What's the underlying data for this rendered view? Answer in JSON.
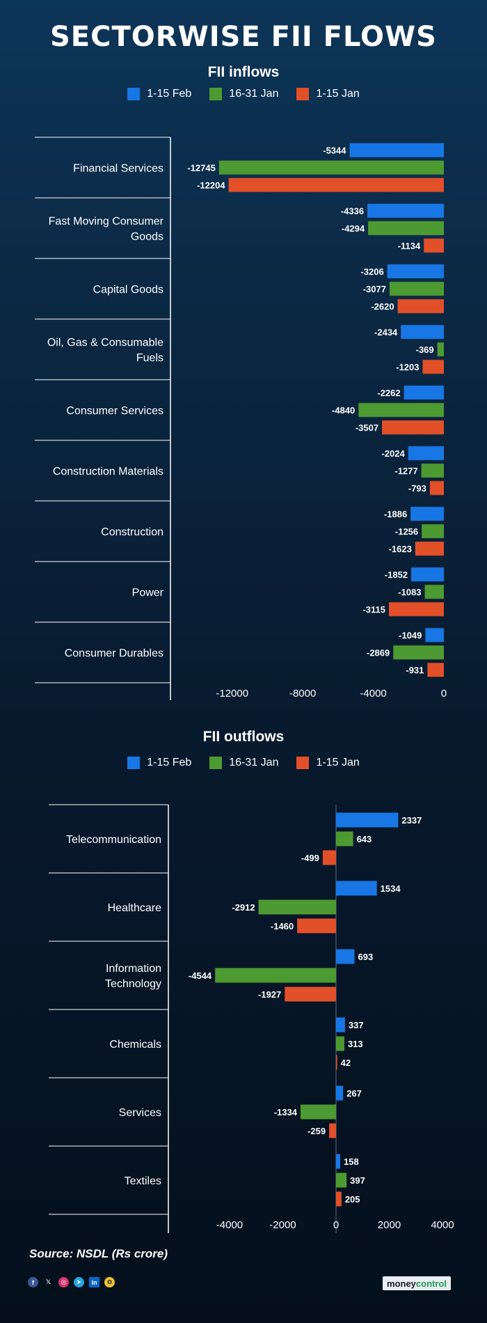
{
  "title": "SECTORWISE FII FLOWS",
  "source": "Source: NSDL (Rs crore)",
  "brand": {
    "part1": "money",
    "part2": "control"
  },
  "social_icons": [
    "facebook-icon",
    "x-icon",
    "instagram-icon",
    "telegram-icon",
    "linkedin-icon",
    "koo-icon"
  ],
  "colors": {
    "feb": "#1877e5",
    "jan_late": "#4e9a32",
    "jan_early": "#e2502a"
  },
  "chart_data": [
    {
      "type": "bar",
      "orientation": "horizontal",
      "title": "FII inflows",
      "categories": [
        "Financial Services",
        "Fast Moving Consumer Goods",
        "Capital Goods",
        "Oil, Gas & Consumable Fuels",
        "Consumer Services",
        "Construction Materials",
        "Construction",
        "Power",
        "Consumer Durables"
      ],
      "series": [
        {
          "name": "1-15 Feb",
          "values": [
            -5344,
            -4336,
            -3206,
            -2434,
            -2262,
            -2024,
            -1886,
            -1852,
            -1049
          ]
        },
        {
          "name": "16-31 Jan",
          "values": [
            -12745,
            -4294,
            -3077,
            -369,
            -4840,
            -1277,
            -1256,
            -1083,
            -2869
          ]
        },
        {
          "name": "1-15 Jan",
          "values": [
            -12204,
            -1134,
            -2620,
            -1203,
            -3507,
            -793,
            -1623,
            -3115,
            -931
          ]
        }
      ],
      "xticks": [
        "-12000",
        "-8000",
        "-4000",
        "0"
      ],
      "tick_values": [
        -12000,
        -8000,
        -4000,
        0
      ],
      "xlim": [
        -15500,
        0
      ]
    },
    {
      "type": "bar",
      "orientation": "horizontal",
      "title": "FII outflows",
      "categories": [
        "Telecommunication",
        "Healthcare",
        "Information Technology",
        "Chemicals",
        "Services",
        "Textiles"
      ],
      "series": [
        {
          "name": "1-15 Feb",
          "values": [
            2337,
            1534,
            693,
            337,
            267,
            158
          ]
        },
        {
          "name": "16-31 Jan",
          "values": [
            643,
            -2912,
            -4544,
            313,
            -1334,
            397
          ]
        },
        {
          "name": "1-15 Jan",
          "values": [
            -499,
            -1460,
            -1927,
            42,
            -259,
            205
          ]
        }
      ],
      "xticks": [
        "-4000",
        "-2000",
        "0",
        "2000",
        "4000"
      ],
      "tick_values": [
        -4000,
        -2000,
        0,
        2000,
        4000
      ],
      "xlim": [
        -6300,
        4000
      ]
    }
  ]
}
